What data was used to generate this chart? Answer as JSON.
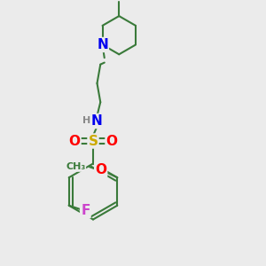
{
  "background_color": "#ebebeb",
  "bond_color": "#3a7a3a",
  "bond_width": 1.5,
  "atom_colors": {
    "N": "#0000ee",
    "O": "#ff0000",
    "S": "#ccaa00",
    "F": "#cc44cc",
    "H": "#888888",
    "C": "#3a7a3a"
  },
  "font_size": 9
}
